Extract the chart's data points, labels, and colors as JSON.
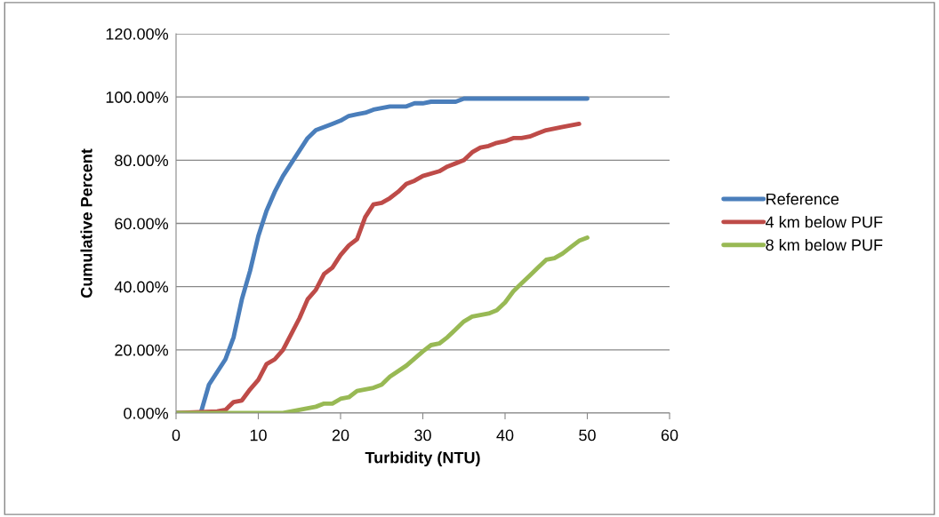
{
  "chart_data": {
    "type": "line",
    "xlabel": "Turbidity (NTU)",
    "ylabel": "Cumulative Percent",
    "xlim": [
      0,
      60
    ],
    "xticks": [
      0,
      10,
      20,
      30,
      40,
      50,
      60
    ],
    "ylim": [
      0,
      120
    ],
    "yticks": [
      {
        "value": 0,
        "label": "0.00%"
      },
      {
        "value": 20,
        "label": "20.00%"
      },
      {
        "value": 40,
        "label": "40.00%"
      },
      {
        "value": 60,
        "label": "60.00%"
      },
      {
        "value": 80,
        "label": "80.00%"
      },
      {
        "value": 100,
        "label": "100.00%"
      },
      {
        "value": 120,
        "label": "120.00%"
      }
    ],
    "grid": "y",
    "legend": "right",
    "marker": "none",
    "line_style": "solid",
    "series": [
      {
        "name": "Reference",
        "color": "#4a7ebb",
        "x": [
          0,
          3,
          4,
          5,
          6,
          7,
          8,
          9,
          10,
          11,
          12,
          13,
          14,
          15,
          16,
          17,
          18,
          19,
          20,
          21,
          22,
          23,
          24,
          26,
          28,
          29,
          30,
          31,
          34,
          35,
          50
        ],
        "values": [
          0,
          0,
          9,
          13,
          17,
          24,
          36,
          45,
          56,
          64,
          70,
          75,
          79,
          83,
          87,
          89.5,
          90.5,
          91.5,
          92.5,
          94,
          94.5,
          95,
          96,
          97,
          97,
          98,
          98,
          98.5,
          98.5,
          99.5,
          99.5
        ]
      },
      {
        "name": "4 km below PUF",
        "color": "#be4b48",
        "x": [
          0,
          5,
          6,
          7,
          8,
          9,
          10,
          11,
          12,
          13,
          14,
          15,
          16,
          17,
          18,
          19,
          20,
          21,
          22,
          23,
          24,
          25,
          26,
          27,
          28,
          29,
          30,
          32,
          33,
          34,
          35,
          36,
          37,
          38,
          39,
          40,
          41,
          42,
          43,
          44,
          45,
          47,
          49
        ],
        "values": [
          0,
          0.5,
          1,
          3.5,
          4,
          7.5,
          10.5,
          15.5,
          17,
          20,
          25,
          30,
          36,
          39,
          44,
          46,
          50,
          53,
          55,
          62,
          66,
          66.5,
          68,
          70,
          72.5,
          73.5,
          75,
          76.5,
          78,
          79,
          80,
          82.5,
          84,
          84.5,
          85.5,
          86,
          87,
          87,
          87.5,
          88.5,
          89.5,
          90.5,
          91.5
        ]
      },
      {
        "name": "8 km below PUF",
        "color": "#98b954",
        "x": [
          0,
          13,
          14,
          15,
          17,
          18,
          19,
          20,
          21,
          22,
          24,
          25,
          26,
          28,
          30,
          31,
          32,
          33,
          34,
          35,
          36,
          38,
          39,
          40,
          41,
          42,
          43,
          44,
          45,
          46,
          47,
          48,
          49,
          50
        ],
        "values": [
          0,
          0,
          0.5,
          1,
          2,
          3,
          3,
          4.5,
          5,
          7,
          8,
          9,
          11.5,
          15,
          19.5,
          21.5,
          22,
          24,
          26.5,
          29,
          30.5,
          31.5,
          32.5,
          35,
          38.5,
          41,
          43.5,
          46,
          48.5,
          49,
          50.5,
          52.5,
          54.5,
          55.5
        ]
      }
    ]
  }
}
